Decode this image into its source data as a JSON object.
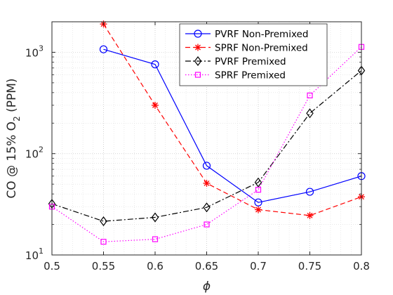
{
  "chart_data": {
    "type": "line",
    "title": "",
    "xlabel": "ϕ",
    "ylabel_parts": {
      "prefix": "CO @ 15% O",
      "subscript": "2",
      "suffix": " (PPM)"
    },
    "xscale": "linear",
    "yscale": "log",
    "xlim": [
      0.5,
      0.8
    ],
    "ylim": [
      10,
      2000
    ],
    "xticks": [
      "0.5",
      "0.55",
      "0.6",
      "0.65",
      "0.7",
      "0.75",
      "0.8"
    ],
    "xtick_values": [
      0.5,
      0.55,
      0.6,
      0.65,
      0.7,
      0.75,
      0.8
    ],
    "yticks": [
      {
        "value": 10,
        "base": "10",
        "exp": "1"
      },
      {
        "value": 100,
        "base": "10",
        "exp": "2"
      },
      {
        "value": 1000,
        "base": "10",
        "exp": "3"
      }
    ],
    "grid": true,
    "minor_grid": true,
    "legend_position": "top-right",
    "series": [
      {
        "name": "PVRF Non-Premixed",
        "color": "#0000ff",
        "line_style": "solid",
        "marker": "circle",
        "x": [
          0.55,
          0.6,
          0.65,
          0.7,
          0.75,
          0.8
        ],
        "y": [
          1070,
          760,
          76,
          33,
          42,
          60
        ]
      },
      {
        "name": "SPRF Non-Premixed",
        "color": "#ff0000",
        "line_style": "dashed",
        "marker": "asterisk",
        "x": [
          0.55,
          0.6,
          0.65,
          0.7,
          0.75,
          0.8
        ],
        "y": [
          1900,
          300,
          51,
          28,
          24.5,
          37.5
        ]
      },
      {
        "name": "PVRF Premixed",
        "color": "#000000",
        "line_style": "dashdot",
        "marker": "diamond",
        "x": [
          0.5,
          0.55,
          0.6,
          0.65,
          0.7,
          0.75,
          0.8
        ],
        "y": [
          32,
          21.5,
          23.5,
          29.5,
          52,
          250,
          660
        ]
      },
      {
        "name": "SPRF Premixed",
        "color": "#ff00ff",
        "line_style": "dotted",
        "marker": "square",
        "x": [
          0.5,
          0.55,
          0.6,
          0.65,
          0.7,
          0.75,
          0.8
        ],
        "y": [
          30,
          13.5,
          14.3,
          20,
          44,
          375,
          1130
        ]
      }
    ]
  }
}
